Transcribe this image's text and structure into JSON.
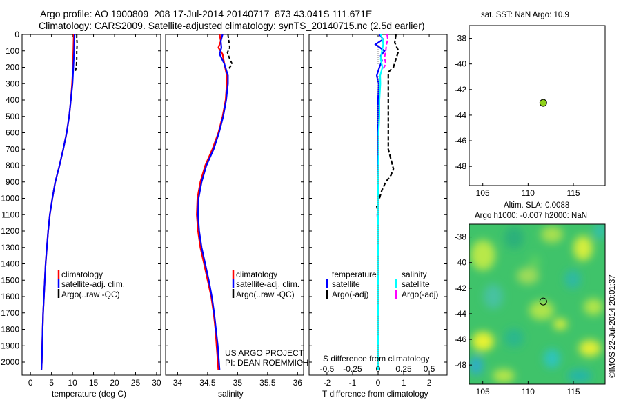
{
  "header": {
    "title_line1": "Argo profile: AO 1900809_208 17-Jul-2014 20140717_873 43.041S 111.671E",
    "title_line2": "Climatology: CARS2009. Satellite-adjusted climatology: synTS_20140715.nc (2.5d earlier)"
  },
  "colors": {
    "climatology": "#ff0000",
    "satellite": "#0000ff",
    "argo": "#000000",
    "salinity_satellite": "#00ffff",
    "salinity_argo": "#ff00ff",
    "marker": "#8fd11a"
  },
  "panels": {
    "temperature": {
      "xlabel": "temperature (deg C)",
      "legend": [
        "climatology",
        "satellite-adj. clim.",
        "Argo(..raw -QC)"
      ]
    },
    "salinity": {
      "xlabel": "salinity",
      "legend": [
        "climatology",
        "satellite-adj. clim.",
        "Argo(..raw -QC)"
      ],
      "note_line1": "US ARGO PROJECT",
      "note_line2": "PI: DEAN ROEMMICH"
    },
    "difference": {
      "xlabel": "T difference from climatology",
      "top_label": "S difference from climatology",
      "legend_col1_title": "temperature",
      "legend_col2_title": "salinity",
      "legend_col1": [
        "satellite",
        "Argo(-adj)"
      ],
      "legend_col2": [
        "satellite",
        "Argo(-adj)"
      ]
    },
    "sst_map": {
      "title": "sat. SST: NaN Argo: 10.9"
    },
    "sla_map": {
      "title_line1": "Altim. SLA: 0.0088",
      "title_line2": "Argo h1000: -0.007 h2000: NaN",
      "side_label": "©IMOS 22-Jul-2014 20:01:37"
    }
  },
  "chart_data": [
    {
      "type": "line",
      "name": "temperature",
      "xlabel": "temperature (deg C)",
      "xlim": [
        -2,
        31
      ],
      "ylim": [
        2080,
        0
      ],
      "x_ticks": [
        0,
        5,
        10,
        15,
        20,
        25,
        30
      ],
      "y_ticks": [
        0,
        100,
        200,
        300,
        400,
        500,
        600,
        700,
        800,
        900,
        1000,
        1100,
        1200,
        1300,
        1400,
        1500,
        1600,
        1700,
        1800,
        1900,
        2000
      ],
      "series": [
        {
          "name": "climatology",
          "depth": [
            0,
            100,
            200,
            300,
            400,
            500,
            600,
            700,
            800,
            900,
            1000,
            1100,
            1200,
            1300,
            1400,
            1500,
            1600,
            1700,
            1800,
            1900,
            2000,
            2050
          ],
          "values": [
            10.3,
            10.2,
            10.1,
            9.9,
            9.6,
            9.2,
            8.6,
            7.8,
            6.9,
            5.9,
            5.2,
            4.6,
            4.2,
            3.9,
            3.6,
            3.4,
            3.2,
            3.0,
            2.9,
            2.8,
            2.7,
            2.6
          ]
        },
        {
          "name": "satellite-adj. clim.",
          "depth": [
            0,
            100,
            200,
            300,
            400,
            500,
            600,
            700,
            800,
            900,
            1000,
            1100,
            1200,
            1300,
            1400,
            1500,
            1600,
            1700,
            1800,
            1900,
            2000,
            2050
          ],
          "values": [
            10.5,
            10.4,
            10.2,
            10.0,
            9.6,
            9.2,
            8.6,
            7.8,
            6.9,
            5.9,
            5.2,
            4.6,
            4.2,
            3.9,
            3.6,
            3.4,
            3.2,
            3.0,
            2.9,
            2.8,
            2.7,
            2.6
          ]
        },
        {
          "name": "Argo(..raw -QC)",
          "depth": [
            0,
            20,
            60,
            100,
            150,
            200,
            230
          ],
          "values": [
            11.0,
            11.0,
            11.1,
            11.0,
            11.0,
            10.9,
            10.6
          ]
        }
      ]
    },
    {
      "type": "line",
      "name": "salinity",
      "xlabel": "salinity",
      "xlim": [
        33.8,
        36.1
      ],
      "ylim": [
        2080,
        0
      ],
      "x_ticks": [
        34,
        34.5,
        35,
        35.5,
        36
      ],
      "series": [
        {
          "name": "climatology",
          "depth": [
            0,
            40,
            80,
            120,
            180,
            250,
            300,
            400,
            500,
            600,
            700,
            800,
            900,
            1000,
            1100,
            1200,
            1300,
            1400,
            1500,
            1600,
            1700,
            1800,
            1900,
            2000,
            2050
          ],
          "values": [
            34.7,
            34.72,
            34.68,
            34.75,
            34.78,
            34.82,
            34.82,
            34.8,
            34.75,
            34.68,
            34.58,
            34.46,
            34.38,
            34.33,
            34.32,
            34.34,
            34.38,
            34.44,
            34.5,
            34.56,
            34.6,
            34.63,
            34.65,
            34.67,
            34.68
          ]
        },
        {
          "name": "satellite-adj. clim.",
          "depth": [
            0,
            40,
            80,
            120,
            180,
            250,
            300,
            400,
            500,
            600,
            700,
            800,
            900,
            1000,
            1100,
            1200,
            1300,
            1400,
            1500,
            1600,
            1700,
            1800,
            1900,
            2000,
            2050
          ],
          "values": [
            34.75,
            34.72,
            34.73,
            34.7,
            34.78,
            34.84,
            34.84,
            34.81,
            34.76,
            34.69,
            34.6,
            34.48,
            34.4,
            34.35,
            34.34,
            34.36,
            34.4,
            34.46,
            34.52,
            34.57,
            34.61,
            34.64,
            34.67,
            34.69,
            34.7
          ]
        },
        {
          "name": "Argo(..raw -QC)",
          "depth": [
            0,
            30,
            80,
            110,
            150,
            180,
            210
          ],
          "values": [
            34.84,
            34.85,
            34.87,
            34.83,
            34.87,
            34.91,
            34.85
          ]
        }
      ]
    },
    {
      "type": "line",
      "name": "difference",
      "xlabel": "T difference from climatology",
      "top_label": "S difference from climatology",
      "xlim": [
        -2.7,
        2.7
      ],
      "ylim": [
        2080,
        0
      ],
      "x_ticks": [
        -2,
        -1,
        0,
        1,
        2
      ],
      "top_ticks": [
        "-0.5",
        "-0.25",
        "0",
        "0.25",
        "0.5"
      ],
      "series": [
        {
          "name": "temperature satellite",
          "depth": [
            0,
            30,
            60,
            100,
            130,
            160,
            200,
            250,
            300,
            400,
            700,
            900,
            1050,
            1100,
            1200,
            1400,
            1600,
            1800,
            2050
          ],
          "values": [
            0.05,
            0.2,
            -0.1,
            0.25,
            0.1,
            0.15,
            0.05,
            -0.05,
            0.02,
            0.0,
            0.0,
            0.0,
            0.0,
            -0.03,
            0.0,
            0.0,
            0.0,
            0.0,
            0.0
          ]
        },
        {
          "name": "temperature Argo(-adj)",
          "depth": [
            0,
            50,
            100,
            150,
            200,
            230,
            700,
            760,
            820,
            860,
            900,
            950,
            1000,
            1050,
            1080
          ],
          "values": [
            0.7,
            0.65,
            0.8,
            0.7,
            0.6,
            0.4,
            0.4,
            0.5,
            0.6,
            0.5,
            0.3,
            0.15,
            0.05,
            -0.05,
            0.0
          ]
        },
        {
          "name": "salinity satellite",
          "depth": [
            0,
            30,
            60,
            100,
            150,
            200,
            250,
            300,
            400,
            500,
            600,
            700,
            800,
            900,
            1100,
            1300,
            1600,
            2050
          ],
          "values": [
            0.1,
            0.18,
            0.2,
            0.15,
            0.1,
            0.17,
            0.08,
            0.09,
            0.05,
            0.05,
            0.02,
            0.02,
            0.01,
            0.0,
            0.0,
            0.0,
            0.0,
            0.0
          ]
        },
        {
          "name": "salinity Argo(-adj)",
          "depth": [
            0,
            30,
            60,
            100,
            140,
            180,
            210
          ],
          "values": [
            0.35,
            0.38,
            0.33,
            0.3,
            0.25,
            0.3,
            0.2
          ]
        }
      ]
    },
    {
      "type": "scatter",
      "name": "sst_map",
      "title": "sat. SST: NaN Argo: 10.9",
      "xlim": [
        103.5,
        118.5
      ],
      "ylim": [
        -49.5,
        -37
      ],
      "x_ticks": [
        105,
        110,
        115
      ],
      "y_ticks": [
        -38,
        -40,
        -42,
        -44,
        -46,
        -48
      ],
      "points": [
        {
          "x": 111.671,
          "y": -43.041
        }
      ]
    },
    {
      "type": "heatmap",
      "name": "sla_map",
      "title": "Altim. SLA: 0.0088",
      "xlim": [
        103.5,
        118.5
      ],
      "ylim": [
        -49.5,
        -37
      ],
      "x_ticks": [
        105,
        110,
        115
      ],
      "y_ticks": [
        -38,
        -40,
        -42,
        -44,
        -46,
        -48
      ],
      "points": [
        {
          "x": 111.671,
          "y": -43.041
        }
      ]
    }
  ]
}
